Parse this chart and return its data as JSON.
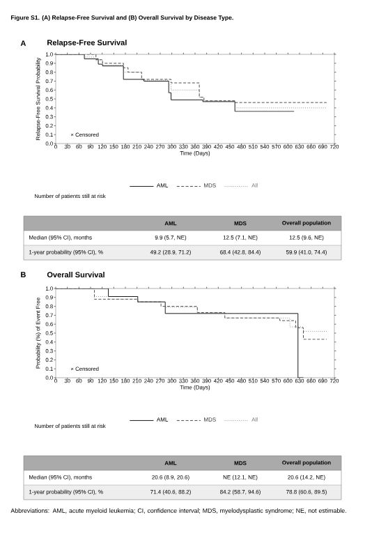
{
  "chart_data": [
    {
      "type": "step",
      "title": "Relapse-Free Survival",
      "xlabel": "Time (Days)",
      "ylabel": "Relapse-Free Survival Probability",
      "xlim": [
        0,
        720
      ],
      "ylim": [
        0,
        1
      ],
      "xticks": [
        0,
        30,
        60,
        90,
        120,
        150,
        180,
        210,
        240,
        270,
        300,
        330,
        360,
        390,
        420,
        450,
        480,
        510,
        540,
        570,
        600,
        630,
        660,
        690,
        720
      ],
      "yticks": [
        {
          "value": 0,
          "label": "0.0"
        },
        {
          "value": 0.1,
          "label": "0.1"
        },
        {
          "value": 0.2,
          "label": "0.2"
        },
        {
          "value": 0.3,
          "label": "0.3"
        },
        {
          "value": 0.4,
          "label": "0.4"
        },
        {
          "value": 0.5,
          "label": "0.5"
        },
        {
          "value": 0.6,
          "label": "0.6"
        },
        {
          "value": 0.7,
          "label": "0.7"
        },
        {
          "value": 0.8,
          "label": "0.8"
        },
        {
          "value": 0.9,
          "label": "0.9"
        },
        {
          "value": 1,
          "label": "1.0"
        }
      ],
      "grid": false,
      "legend": "bottom",
      "marker": "none",
      "series": [
        {
          "name": "AML",
          "color": "#000000",
          "line_style": "solid",
          "x": [
            0,
            74,
            110,
            121,
            175,
            228,
            292,
            298,
            380,
            463,
            616
          ],
          "values": [
            1.0,
            0.95,
            0.89,
            0.87,
            0.72,
            0.7,
            0.57,
            0.49,
            0.47,
            0.36,
            0.36
          ]
        },
        {
          "name": "MDS",
          "color": "#3a3a3a",
          "line_style": "dashed",
          "x": [
            0,
            104,
            121,
            175,
            187,
            222,
            298,
            371,
            383,
            463,
            700
          ],
          "values": [
            1.0,
            0.94,
            0.9,
            0.85,
            0.8,
            0.72,
            0.68,
            0.52,
            0.48,
            0.46,
            0.46
          ]
        },
        {
          "name": "All",
          "color": "#7a7a7a",
          "line_style": "dotted",
          "x": [
            0,
            74,
            104,
            121,
            175,
            222,
            292,
            298,
            371,
            383,
            463,
            700
          ],
          "values": [
            1.0,
            0.97,
            0.93,
            0.88,
            0.8,
            0.71,
            0.66,
            0.6,
            0.52,
            0.48,
            0.4,
            0.4
          ]
        }
      ],
      "annotations": [
        "Figure S1. (A) Relapse-Free Survival and (B) Overall Survival by Disease Type.",
        "A",
        "× Censored",
        "Number of patients still at risk",
        "AML",
        "MDS",
        "Overall population",
        "Median (95% CI), months",
        "9.9 (5.7, NE)",
        "12.5 (7.1, NE)",
        "12.5 (9.6, NE)",
        "1-year probability (95% CI), %",
        "49.2 (28.9, 71.2)",
        "68.4 (42.8, 84.4)",
        "59.9 (41.0, 74.4)"
      ]
    },
    {
      "type": "step",
      "title": "Overall Survival",
      "xlabel": "Time (Days)",
      "ylabel": "Probability (%) of Event Free",
      "xlim": [
        0,
        720
      ],
      "ylim": [
        0,
        1
      ],
      "xticks": [
        0,
        30,
        60,
        90,
        120,
        150,
        180,
        210,
        240,
        270,
        300,
        330,
        360,
        390,
        420,
        450,
        480,
        510,
        540,
        570,
        600,
        630,
        660,
        690,
        720
      ],
      "yticks": [
        {
          "value": 0,
          "label": "0.0"
        },
        {
          "value": 0.1,
          "label": "0.1"
        },
        {
          "value": 0.2,
          "label": "0.2"
        },
        {
          "value": 0.3,
          "label": "0.3"
        },
        {
          "value": 0.4,
          "label": "0.4"
        },
        {
          "value": 0.5,
          "label": "0.5"
        },
        {
          "value": 0.6,
          "label": "0.6"
        },
        {
          "value": 0.7,
          "label": "0.7"
        },
        {
          "value": 0.8,
          "label": "0.8"
        },
        {
          "value": 0.9,
          "label": "0.9"
        },
        {
          "value": 1,
          "label": "1.0"
        }
      ],
      "grid": false,
      "legend": "bottom",
      "marker": "none",
      "series": [
        {
          "name": "AML",
          "color": "#000000",
          "line_style": "solid",
          "x": [
            0,
            136,
            212,
            283,
            626,
            640
          ],
          "values": [
            1.0,
            0.91,
            0.85,
            0.72,
            0.0,
            0.0
          ]
        },
        {
          "name": "MDS",
          "color": "#3a3a3a",
          "line_style": "dashed",
          "x": [
            0,
            100,
            212,
            272,
            366,
            437,
            579,
            620,
            640,
            700
          ],
          "values": [
            1.0,
            0.88,
            0.85,
            0.8,
            0.73,
            0.67,
            0.64,
            0.56,
            0.43,
            0.43
          ]
        },
        {
          "name": "All",
          "color": "#7a7a7a",
          "line_style": "dotted",
          "x": [
            0,
            100,
            136,
            212,
            283,
            366,
            437,
            605,
            640,
            700
          ],
          "values": [
            1.0,
            0.91,
            0.88,
            0.85,
            0.79,
            0.73,
            0.67,
            0.57,
            0.52,
            0.52
          ]
        }
      ],
      "annotations": [
        "B",
        "× Censored",
        "Number of patients still at risk",
        "AML",
        "MDS",
        "Overall population",
        "Median (95% CI), months",
        "20.6 (8.9, 20.6)",
        "NE (12.1, NE)",
        "20.6 (14.2, NE)",
        "1-year probability (95% CI), %",
        "71.4 (40.6, 88.2)",
        "84.2 (58.7, 94.6)",
        "78.8 (60.6, 89.5)",
        "Abbreviations: AML, acute myeloid leukemia; CI, confidence interval; MDS, myelodysplastic syndrome; NE, not estimable."
      ]
    }
  ]
}
